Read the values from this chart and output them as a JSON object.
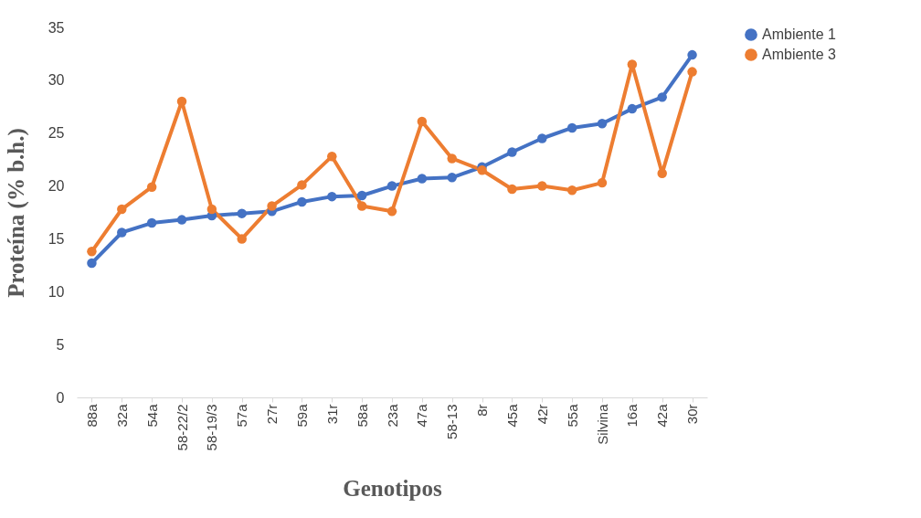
{
  "chart_data": {
    "type": "line",
    "xlabel": "Genotipos",
    "ylabel": "Proteína (% b.h.)",
    "categories": [
      "88a",
      "32a",
      "54a",
      "58-22/2",
      "58-19/3",
      "57a",
      "27r",
      "59a",
      "31r",
      "58a",
      "23a",
      "47a",
      "58-13",
      "8r",
      "45a",
      "42r",
      "55a",
      "Silvina",
      "16a",
      "42a",
      "30r"
    ],
    "series": [
      {
        "name": "Ambiente 1",
        "color": "#4472c4",
        "values": [
          12.7,
          15.6,
          16.5,
          16.8,
          17.2,
          17.4,
          17.6,
          18.5,
          19.0,
          19.1,
          20.0,
          20.7,
          20.8,
          21.8,
          23.2,
          24.5,
          25.5,
          25.9,
          27.3,
          28.4,
          32.4
        ]
      },
      {
        "name": "Ambiente 3",
        "color": "#ed7d31",
        "values": [
          13.8,
          17.8,
          19.9,
          28.0,
          17.8,
          15.0,
          18.1,
          20.1,
          22.8,
          18.1,
          17.6,
          26.1,
          22.6,
          21.5,
          19.7,
          20.0,
          19.6,
          20.3,
          31.5,
          21.2,
          30.8
        ]
      }
    ],
    "ylim": [
      0,
      35
    ],
    "yticks": [
      0,
      5,
      10,
      15,
      20,
      25,
      30,
      35
    ],
    "grid": false,
    "legend": "right",
    "marker": "circle",
    "line_style": "solid"
  }
}
